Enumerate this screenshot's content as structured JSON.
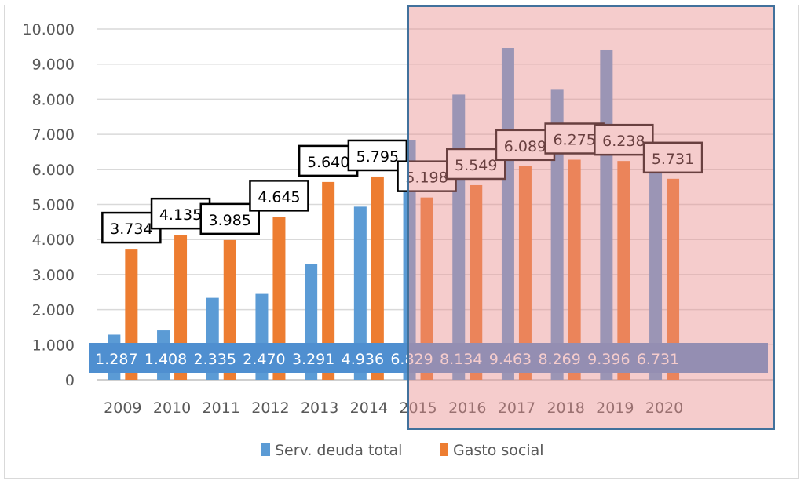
{
  "chart_data": {
    "type": "bar",
    "categories": [
      "2009",
      "2010",
      "2011",
      "2012",
      "2013",
      "2014",
      "2015",
      "2016",
      "2017",
      "2018",
      "2019",
      "2020"
    ],
    "series": [
      {
        "name": "Serv. deuda total",
        "color": "#5b9bd5",
        "values": [
          1287,
          1408,
          2335,
          2470,
          3291,
          4936,
          6829,
          8134,
          9463,
          8269,
          9396,
          6731
        ],
        "labels": [
          "1.287",
          "1.408",
          "2.335",
          "2.470",
          "3.291",
          "4.936",
          "6.829",
          "8.134",
          "9.463",
          "8.269",
          "9.396",
          "6.731"
        ]
      },
      {
        "name": "Gasto social",
        "color": "#ed7d31",
        "values": [
          3734,
          4135,
          3985,
          4645,
          5640,
          5795,
          5198,
          5549,
          6089,
          6275,
          6238,
          5731
        ],
        "labels": [
          "3.734",
          "4.135",
          "3.985",
          "4.645",
          "5.640",
          "5.795",
          "5.198",
          "5.549",
          "6.089",
          "6.275",
          "6.238",
          "5.731"
        ]
      }
    ],
    "yticks": [
      "0",
      "1.000",
      "2.000",
      "3.000",
      "4.000",
      "5.000",
      "6.000",
      "7.000",
      "8.000",
      "9.000",
      "10.000"
    ],
    "ylim": [
      0,
      10000
    ],
    "grid": true,
    "legend": "bottom",
    "highlight": {
      "from": "2015",
      "to": "2020",
      "color": "#e88e8e"
    },
    "title": "",
    "xlabel": "",
    "ylabel": ""
  }
}
